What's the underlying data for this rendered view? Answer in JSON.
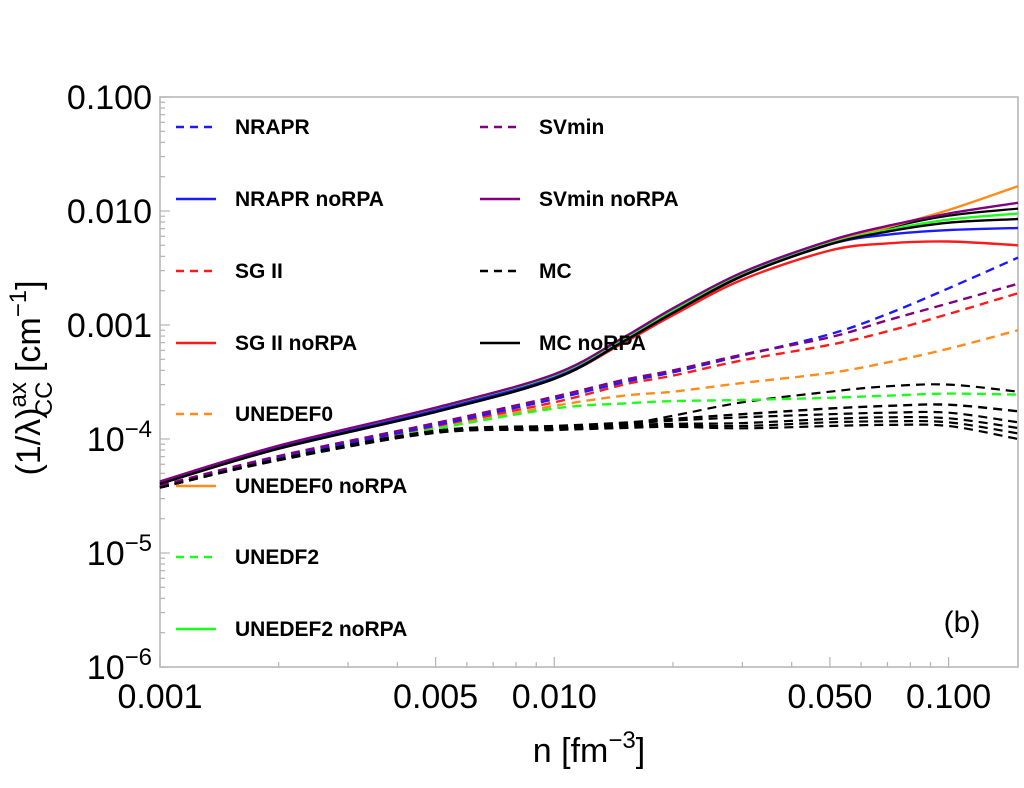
{
  "chart_data": {
    "type": "line",
    "xscale": "log",
    "yscale": "log",
    "xlim": [
      0.001,
      0.15
    ],
    "ylim": [
      1e-06,
      0.1
    ],
    "xticks": [
      {
        "v": 0.001,
        "label": "0.001"
      },
      {
        "v": 0.005,
        "label": "0.005"
      },
      {
        "v": 0.01,
        "label": "0.010"
      },
      {
        "v": 0.05,
        "label": "0.050"
      },
      {
        "v": 0.1,
        "label": "0.100"
      }
    ],
    "yticks": [
      {
        "v": 0.1,
        "label": "0.100",
        "base": "",
        "exp": ""
      },
      {
        "v": 0.01,
        "label": "0.010",
        "base": "",
        "exp": ""
      },
      {
        "v": 0.001,
        "label": "0.001",
        "base": "",
        "exp": ""
      },
      {
        "v": 0.0001,
        "label": "",
        "base": "10",
        "exp": "−4"
      },
      {
        "v": 1e-05,
        "label": "",
        "base": "10",
        "exp": "−5"
      },
      {
        "v": 1e-06,
        "label": "",
        "base": "10",
        "exp": "−6"
      }
    ],
    "xlabel": {
      "main": "n [fm",
      "exp": "−3",
      "close": "]"
    },
    "ylabel": {
      "main": "(1/λ)",
      "sup": "ax",
      "sub": "CC",
      "unit": " [cm",
      "unitexp": "−1",
      "close": "]"
    },
    "panel_label": "(b)",
    "colors": {
      "NRAPR": "#1a1aff",
      "SVmin": "#800080",
      "SGII": "#ff1a1a",
      "MC": "#000000",
      "UNEDEF0": "#ff8c1a",
      "UNEDF2": "#1aff1a"
    },
    "x": [
      0.001,
      0.002,
      0.005,
      0.01,
      0.015,
      0.02,
      0.03,
      0.05,
      0.07,
      0.1,
      0.15
    ],
    "series": [
      {
        "name": "NRAPR",
        "color": "#1a1aff",
        "dashed": true,
        "values": [
          3.85e-05,
          6.9e-05,
          0.000132,
          0.000224,
          0.000315,
          0.000385,
          0.00054,
          0.00083,
          0.00125,
          0.0021,
          0.0039
        ]
      },
      {
        "name": "NRAPR noRPA",
        "color": "#1a1aff",
        "dashed": false,
        "values": [
          4.1e-05,
          8.35e-05,
          0.000178,
          0.000345,
          0.00072,
          0.00128,
          0.0027,
          0.0051,
          0.0062,
          0.0068,
          0.0071
        ]
      },
      {
        "name": "SG II",
        "color": "#ff1a1a",
        "dashed": true,
        "values": [
          3.85e-05,
          6.85e-05,
          0.00013,
          0.00021,
          0.0003,
          0.00036,
          0.00049,
          0.00067,
          0.00088,
          0.00125,
          0.0019
        ]
      },
      {
        "name": "SG II noRPA",
        "color": "#ff1a1a",
        "dashed": false,
        "values": [
          4.1e-05,
          8.35e-05,
          0.000175,
          0.00034,
          0.0007,
          0.00122,
          0.0025,
          0.0045,
          0.0052,
          0.0054,
          0.005
        ]
      },
      {
        "name": "UNEDEF0",
        "color": "#ff8c1a",
        "dashed": true,
        "values": [
          3.85e-05,
          6.75e-05,
          0.000125,
          0.000195,
          0.00024,
          0.00026,
          0.00031,
          0.00038,
          0.00047,
          0.00062,
          0.0009
        ]
      },
      {
        "name": "UNEDEF0 noRPA",
        "color": "#ff8c1a",
        "dashed": false,
        "values": [
          4.1e-05,
          8.35e-05,
          0.000178,
          0.00035,
          0.00074,
          0.00132,
          0.0028,
          0.0053,
          0.0072,
          0.0102,
          0.0165
        ]
      },
      {
        "name": "UNEDF2",
        "color": "#1aff1a",
        "dashed": true,
        "values": [
          3.85e-05,
          6.7e-05,
          0.000123,
          0.000185,
          0.000205,
          0.000215,
          0.00022,
          0.00023,
          0.00024,
          0.00025,
          0.000245
        ]
      },
      {
        "name": "UNEDEF2 noRPA",
        "color": "#1aff1a",
        "dashed": false,
        "values": [
          4.1e-05,
          8.4e-05,
          0.00018,
          0.000355,
          0.00075,
          0.00133,
          0.0028,
          0.0052,
          0.0068,
          0.0084,
          0.0095
        ]
      },
      {
        "name": "SVmin",
        "color": "#800080",
        "dashed": true,
        "values": [
          3.9e-05,
          7.1e-05,
          0.000138,
          0.000235,
          0.00033,
          0.0004,
          0.00055,
          0.00078,
          0.0011,
          0.00155,
          0.0023
        ]
      },
      {
        "name": "SVmin noRPA",
        "color": "#800080",
        "dashed": false,
        "values": [
          4.25e-05,
          8.75e-05,
          0.000188,
          0.00037,
          0.00078,
          0.0014,
          0.0029,
          0.0055,
          0.0074,
          0.0095,
          0.0118
        ]
      },
      {
        "name": "MC",
        "color": "#000000",
        "dashed": true,
        "values": [
          3.75e-05,
          6.65e-05,
          0.000118,
          0.00013,
          0.000139,
          0.00015,
          0.000165,
          0.000185,
          0.000195,
          0.0002,
          0.000175
        ]
      },
      {
        "name": "MC noRPA",
        "color": "#000000",
        "dashed": false,
        "values": [
          4.05e-05,
          8.25e-05,
          0.000173,
          0.000338,
          0.00072,
          0.00128,
          0.0027,
          0.0051,
          0.0066,
          0.0079,
          0.0085
        ]
      }
    ],
    "mc_extra": [
      {
        "name": "MC band 1",
        "values": [
          3.75e-05,
          6.6e-05,
          0.000116,
          0.000125,
          0.000135,
          0.00016,
          0.00021,
          0.00026,
          0.00029,
          0.0003,
          0.00026
        ]
      },
      {
        "name": "MC band 2",
        "values": [
          3.75e-05,
          6.65e-05,
          0.000118,
          0.000128,
          0.000136,
          0.000145,
          0.000155,
          0.000165,
          0.00017,
          0.00017,
          0.00014
        ]
      },
      {
        "name": "MC band 3",
        "values": [
          3.75e-05,
          6.6e-05,
          0.000116,
          0.000125,
          0.000132,
          0.000136,
          0.000138,
          0.00015,
          0.000155,
          0.000152,
          0.000125
        ]
      },
      {
        "name": "MC band 4",
        "values": [
          3.75e-05,
          6.55e-05,
          0.000114,
          0.000122,
          0.000128,
          0.000132,
          0.00013,
          0.00014,
          0.000143,
          0.00014,
          0.000112
        ]
      },
      {
        "name": "MC band 5",
        "values": [
          3.75e-05,
          6.5e-05,
          0.000113,
          0.00012,
          0.000125,
          0.000128,
          0.000124,
          0.00013,
          0.000133,
          0.00013,
          0.0001
        ]
      },
      {
        "name": "MC noRPA 2",
        "values": [
          4.05e-05,
          8.2e-05,
          0.000172,
          0.000336,
          0.00071,
          0.00127,
          0.00268,
          0.0052,
          0.0071,
          0.0091,
          0.0105
        ]
      }
    ],
    "legend": {
      "left": [
        "NRAPR",
        "NRAPR noRPA",
        "SG II",
        "SG II noRPA",
        "UNEDEF0",
        "UNEDEF0 noRPA",
        "UNEDF2",
        "UNEDEF2 noRPA"
      ],
      "right": [
        "SVmin",
        "SVmin noRPA",
        "MC",
        "MC noRPA"
      ]
    }
  }
}
